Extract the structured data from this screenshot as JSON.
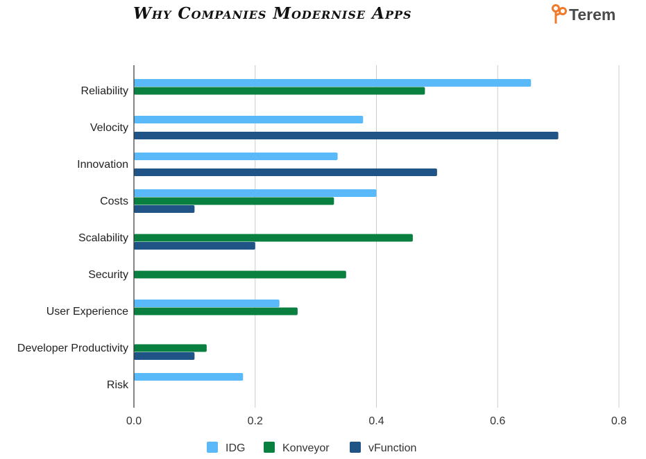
{
  "title": "Why Companies Modernise Apps",
  "logo": {
    "text": "Terem",
    "icon": "terem-logo-icon"
  },
  "colors": {
    "IDG": "#5AB9F9",
    "Konveyor": "#0A8040",
    "vFunction": "#215486",
    "grid": "#cccccc",
    "axis": "#333333"
  },
  "chart_data": {
    "type": "bar",
    "orientation": "horizontal",
    "title": "Why Companies Modernise Apps",
    "categories": [
      "Reliability",
      "Velocity",
      "Innovation",
      "Costs",
      "Scalability",
      "Security",
      "User Experience",
      "Developer Productivity",
      "Risk"
    ],
    "series": [
      {
        "name": "IDG",
        "values": [
          0.655,
          0.378,
          0.336,
          0.4,
          null,
          null,
          0.24,
          null,
          0.18
        ]
      },
      {
        "name": "Konveyor",
        "values": [
          0.48,
          null,
          null,
          0.33,
          0.46,
          0.35,
          0.27,
          0.12,
          null
        ]
      },
      {
        "name": "vFunction",
        "values": [
          null,
          0.7,
          0.5,
          0.1,
          0.2,
          null,
          null,
          0.1,
          null
        ]
      }
    ],
    "xlim": [
      0,
      0.8
    ],
    "xticks": [
      "0.0",
      "0.2",
      "0.4",
      "0.6",
      "0.8"
    ],
    "grid": "vertical",
    "legend": "bottom"
  }
}
